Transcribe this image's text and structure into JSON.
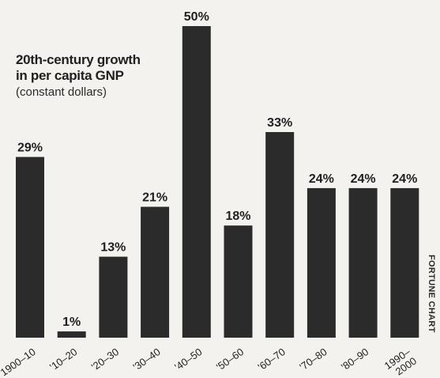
{
  "title_line1": "20th-century growth",
  "title_line2": "in per capita GNP",
  "subtitle": "(constant dollars)",
  "credit": "FORTUNE CHART",
  "colors": {
    "bar": "#2b2b2b",
    "background": "#f3f2ee",
    "text": "#1f1f1f"
  },
  "chart_data": {
    "type": "bar",
    "title": "20th-century growth in per capita GNP",
    "subtitle": "(constant dollars)",
    "categories": [
      "1900–10",
      "'10–20",
      "'20–30",
      "'30–40",
      "'40–50",
      "'50–60",
      "'60–70",
      "'70–80",
      "'80–90",
      "1990–2000"
    ],
    "category_lines": [
      [
        "1900–10"
      ],
      [
        "'10–20"
      ],
      [
        "'20–30"
      ],
      [
        "'30–40"
      ],
      [
        "'40–50"
      ],
      [
        "'50–60"
      ],
      [
        "'60–70"
      ],
      [
        "'70–80"
      ],
      [
        "'80–90"
      ],
      [
        "1990–",
        "2000"
      ]
    ],
    "values": [
      29,
      1,
      13,
      21,
      50,
      18,
      33,
      24,
      24,
      24
    ],
    "labels": [
      "29%",
      "1%",
      "13%",
      "21%",
      "50%",
      "18%",
      "33%",
      "24%",
      "24%",
      "24%"
    ],
    "xlabel": "",
    "ylabel": "",
    "ylim": [
      0,
      50
    ],
    "grid": false,
    "legend": "none"
  }
}
